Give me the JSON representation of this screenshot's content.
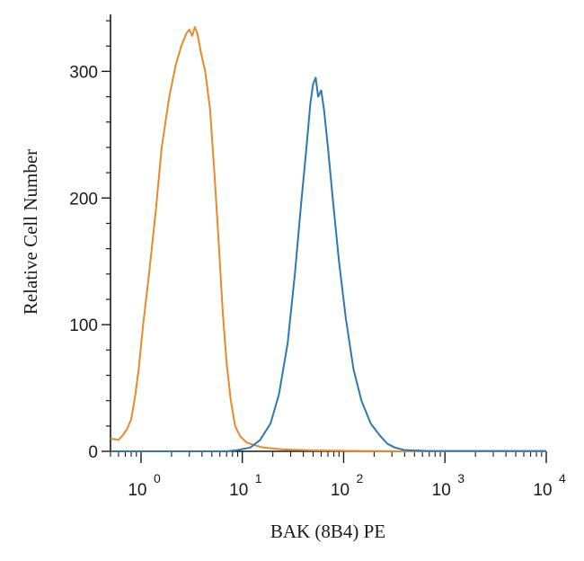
{
  "chart_data": {
    "type": "line",
    "title": "",
    "xlabel": "BAK (8B4) PE",
    "ylabel": "Relative Cell Number",
    "x_scale": "log",
    "xlim": [
      0.5,
      10000
    ],
    "ylim": [
      0,
      345
    ],
    "x_ticks": [
      {
        "base": "10",
        "exp": "0",
        "value": 1
      },
      {
        "base": "10",
        "exp": "1",
        "value": 10
      },
      {
        "base": "10",
        "exp": "2",
        "value": 100
      },
      {
        "base": "10",
        "exp": "3",
        "value": 1000
      },
      {
        "base": "10",
        "exp": "4",
        "value": 10000
      }
    ],
    "y_ticks": [
      {
        "label": "0",
        "value": 0
      },
      {
        "label": "100",
        "value": 100
      },
      {
        "label": "200",
        "value": 200
      },
      {
        "label": "300",
        "value": 300
      }
    ],
    "grid": false,
    "series": [
      {
        "color": "#e8892a",
        "points": [
          [
            0.5,
            10
          ],
          [
            0.6,
            9
          ],
          [
            0.65,
            12
          ],
          [
            0.72,
            17
          ],
          [
            0.8,
            25
          ],
          [
            0.88,
            45
          ],
          [
            0.95,
            65
          ],
          [
            1.05,
            100
          ],
          [
            1.2,
            140
          ],
          [
            1.4,
            190
          ],
          [
            1.6,
            240
          ],
          [
            1.9,
            280
          ],
          [
            2.2,
            305
          ],
          [
            2.5,
            320
          ],
          [
            2.8,
            330
          ],
          [
            3.0,
            333
          ],
          [
            3.2,
            328
          ],
          [
            3.4,
            335
          ],
          [
            3.6,
            330
          ],
          [
            3.9,
            315
          ],
          [
            4.3,
            300
          ],
          [
            4.8,
            270
          ],
          [
            5.3,
            220
          ],
          [
            5.8,
            170
          ],
          [
            6.4,
            110
          ],
          [
            7.0,
            70
          ],
          [
            7.7,
            40
          ],
          [
            8.5,
            20
          ],
          [
            9.5,
            12
          ],
          [
            11,
            7
          ],
          [
            13,
            5
          ],
          [
            16,
            3
          ],
          [
            25,
            1.5
          ],
          [
            50,
            0.7
          ],
          [
            150,
            0.3
          ],
          [
            400,
            0
          ],
          [
            10000,
            0
          ]
        ]
      },
      {
        "color": "#2e78b3",
        "points": [
          [
            0.5,
            0
          ],
          [
            7,
            0
          ],
          [
            9,
            1
          ],
          [
            12,
            3
          ],
          [
            15,
            9
          ],
          [
            19,
            22
          ],
          [
            23,
            45
          ],
          [
            28,
            85
          ],
          [
            33,
            140
          ],
          [
            38,
            195
          ],
          [
            43,
            240
          ],
          [
            47,
            275
          ],
          [
            50,
            290
          ],
          [
            53,
            295
          ],
          [
            56,
            280
          ],
          [
            60,
            285
          ],
          [
            64,
            270
          ],
          [
            70,
            240
          ],
          [
            78,
            200
          ],
          [
            90,
            150
          ],
          [
            105,
            105
          ],
          [
            125,
            65
          ],
          [
            150,
            40
          ],
          [
            185,
            22
          ],
          [
            230,
            12
          ],
          [
            270,
            6
          ],
          [
            320,
            3
          ],
          [
            400,
            1
          ],
          [
            700,
            0.3
          ],
          [
            10000,
            0.3
          ]
        ]
      }
    ]
  }
}
